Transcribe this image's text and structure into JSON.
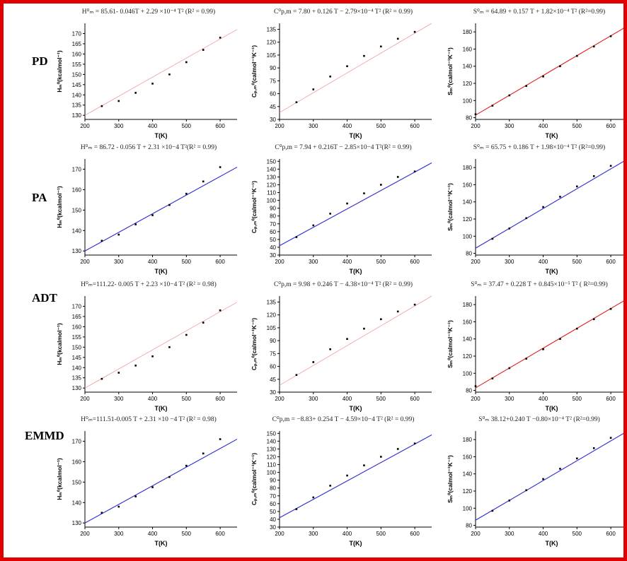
{
  "rows": [
    {
      "label": "PD"
    },
    {
      "label": "PA"
    },
    {
      "label": "ADT"
    },
    {
      "label": "EMMD"
    }
  ],
  "styles": {
    "red_line": "#f09a9a",
    "bright_red_line": "#e02020",
    "blue_line": "#2a2ad0",
    "point": "#000000",
    "frame_border": "#e00000"
  },
  "chart_data": [
    {
      "id": "PD-H",
      "row": 0,
      "col": 0,
      "type": "scatter",
      "equation": "H⁰ₘ = 85.61- 0.046T + 2.29 ×10⁻⁴ T² (R² = 0.99)",
      "xlabel": "T(K)",
      "ylabel": "Hₘ⁰(kcalmol⁻¹)",
      "xlim": [
        200,
        650
      ],
      "ylim": [
        128,
        175
      ],
      "xticks": [
        200,
        300,
        400,
        500,
        600
      ],
      "yticks": [
        130,
        135,
        140,
        145,
        150,
        155,
        160,
        165,
        170
      ],
      "x": [
        250,
        300,
        350,
        400,
        450,
        500,
        550,
        600
      ],
      "y": [
        134.5,
        137,
        141,
        145.5,
        150,
        156,
        162,
        168
      ],
      "fit": {
        "x0": 200,
        "y0": 130,
        "x1": 650,
        "y1": 172
      },
      "line_style": "red_line"
    },
    {
      "id": "PD-Cp",
      "row": 0,
      "col": 1,
      "type": "scatter",
      "equation": "C⁰p,m = 7.80 + 0.126 T − 2.79×10⁻⁴ T²    (R² = 0.99)",
      "xlabel": "T(K)",
      "ylabel": "Cₚ,ₘ⁰(calmol⁻¹K⁻¹)",
      "xlim": [
        200,
        650
      ],
      "ylim": [
        30,
        142
      ],
      "xticks": [
        200,
        300,
        400,
        500,
        600
      ],
      "yticks": [
        30,
        45,
        60,
        75,
        90,
        105,
        120,
        135
      ],
      "x": [
        250,
        300,
        350,
        400,
        450,
        500,
        550,
        600
      ],
      "y": [
        50,
        65,
        80,
        92,
        104,
        115,
        124,
        132
      ],
      "fit": {
        "x0": 200,
        "y0": 38,
        "x1": 650,
        "y1": 142
      },
      "line_style": "red_line"
    },
    {
      "id": "PD-S",
      "row": 0,
      "col": 2,
      "type": "scatter",
      "equation": "S⁰ₘ = 64.89 + 0.157 T + 1.82×10⁻⁴ T² (R²=0.99)",
      "xlabel": "T(K)",
      "ylabel": "Sₘ⁰(calmol⁻¹K⁻¹)",
      "xlim": [
        200,
        650
      ],
      "ylim": [
        78,
        190
      ],
      "xticks": [
        200,
        300,
        400,
        500,
        600
      ],
      "yticks": [
        80,
        100,
        120,
        140,
        160,
        180
      ],
      "x": [
        200,
        250,
        300,
        350,
        400,
        450,
        500,
        550,
        600
      ],
      "y": [
        84,
        94,
        106,
        117,
        128,
        140,
        152,
        163,
        175
      ],
      "fit": {
        "x0": 200,
        "y0": 83,
        "x1": 650,
        "y1": 187
      },
      "line_style": "bright_red_line"
    },
    {
      "id": "PA-H",
      "row": 1,
      "col": 0,
      "type": "scatter",
      "equation": "H⁰ₘ = 86.72 - 0.056 T + 2.31 ×10−4 T²(R² = 0.99)",
      "xlabel": "T(K)",
      "ylabel": "Hₘ⁰(kcalmol⁻¹)",
      "xlim": [
        200,
        650
      ],
      "ylim": [
        128,
        175
      ],
      "xticks": [
        200,
        300,
        400,
        500,
        600
      ],
      "yticks": [
        130,
        140,
        150,
        160,
        170
      ],
      "x": [
        250,
        300,
        350,
        400,
        450,
        500,
        550,
        600
      ],
      "y": [
        135,
        138,
        143,
        147.5,
        152.5,
        158,
        164,
        171
      ],
      "fit": {
        "x0": 200,
        "y0": 130,
        "x1": 650,
        "y1": 171
      },
      "line_style": "blue_line"
    },
    {
      "id": "PA-Cp",
      "row": 1,
      "col": 1,
      "type": "scatter",
      "equation": "C⁰p,m = 7.94 + 0.216T − 2.85×10−4 T²(R² = 0.99)",
      "xlabel": "T(K)",
      "ylabel": "Cₚ,ₘ⁰(calmol⁻¹K⁻¹)",
      "xlim": [
        200,
        650
      ],
      "ylim": [
        30,
        153
      ],
      "xticks": [
        200,
        300,
        400,
        500,
        600
      ],
      "yticks": [
        30,
        40,
        50,
        60,
        70,
        80,
        90,
        100,
        110,
        120,
        130,
        140,
        150
      ],
      "x": [
        250,
        300,
        350,
        400,
        450,
        500,
        550,
        600
      ],
      "y": [
        53,
        68,
        83,
        96,
        109,
        120,
        130,
        137
      ],
      "fit": {
        "x0": 200,
        "y0": 42,
        "x1": 650,
        "y1": 148
      },
      "line_style": "blue_line"
    },
    {
      "id": "PA-S",
      "row": 1,
      "col": 2,
      "type": "scatter",
      "equation": "S⁰ₘ = 65.75 + 0.186 T + 1.98×10⁻⁴ T²    (R²=0.99)",
      "xlabel": "T(K)",
      "ylabel": "Sₘ⁰(calmol⁻¹K⁻¹)",
      "xlim": [
        200,
        650
      ],
      "ylim": [
        78,
        190
      ],
      "xticks": [
        200,
        300,
        400,
        500,
        600
      ],
      "yticks": [
        80,
        100,
        120,
        140,
        160,
        180
      ],
      "x": [
        250,
        300,
        350,
        400,
        450,
        500,
        550,
        600
      ],
      "y": [
        97,
        109,
        121,
        134,
        146,
        158,
        170,
        182
      ],
      "fit": {
        "x0": 200,
        "y0": 86,
        "x1": 650,
        "y1": 190
      },
      "line_style": "blue_line"
    },
    {
      "id": "ADT-H",
      "row": 2,
      "col": 0,
      "type": "scatter",
      "equation": "H⁰ₘ=111.22- 0.005 T + 2.23 ×10−4 T² (R² = 0.98)",
      "xlabel": "T(K)",
      "ylabel": "Hₘ⁰(kcalmol⁻¹)",
      "xlim": [
        200,
        650
      ],
      "ylim": [
        128,
        175
      ],
      "xticks": [
        200,
        300,
        400,
        500,
        600
      ],
      "yticks": [
        130,
        135,
        140,
        145,
        150,
        155,
        160,
        165,
        170
      ],
      "x": [
        250,
        300,
        350,
        400,
        450,
        500,
        550,
        600
      ],
      "y": [
        134.5,
        137.5,
        141,
        145.5,
        150,
        156,
        162,
        168
      ],
      "fit": {
        "x0": 200,
        "y0": 130,
        "x1": 650,
        "y1": 172
      },
      "line_style": "red_line"
    },
    {
      "id": "ADT-Cp",
      "row": 2,
      "col": 1,
      "type": "scatter",
      "equation": "C⁰p,m = 9.98 + 0.246 T − 4.38×10⁻⁴ T² (R² = 0.99)",
      "xlabel": "T(K)",
      "ylabel": "Cₚ,ₘ⁰(calmol⁻¹K⁻¹)",
      "xlim": [
        200,
        650
      ],
      "ylim": [
        30,
        142
      ],
      "xticks": [
        200,
        300,
        400,
        500,
        600
      ],
      "yticks": [
        30,
        45,
        60,
        75,
        90,
        105,
        120,
        135
      ],
      "x": [
        250,
        300,
        350,
        400,
        450,
        500,
        550,
        600
      ],
      "y": [
        50,
        65,
        80,
        92,
        104,
        115,
        124,
        132
      ],
      "fit": {
        "x0": 200,
        "y0": 38,
        "x1": 650,
        "y1": 142
      },
      "line_style": "red_line"
    },
    {
      "id": "ADT-S",
      "row": 2,
      "col": 2,
      "type": "scatter",
      "equation": "S⁰ₘ = 37.47 + 0.228 T + 0.845×10⁻⁵ T²    ( R²=0.99)",
      "xlabel": "T(K)",
      "ylabel": "Sₘ⁰(calmol⁻¹K⁻¹)",
      "xlim": [
        200,
        650
      ],
      "ylim": [
        78,
        190
      ],
      "xticks": [
        200,
        300,
        400,
        500,
        600
      ],
      "yticks": [
        80,
        100,
        120,
        140,
        160,
        180
      ],
      "x": [
        200,
        250,
        300,
        350,
        400,
        450,
        500,
        550,
        600
      ],
      "y": [
        85,
        94,
        106,
        117,
        128,
        140,
        152,
        163,
        175
      ],
      "fit": {
        "x0": 200,
        "y0": 83,
        "x1": 650,
        "y1": 187
      },
      "line_style": "bright_red_line"
    },
    {
      "id": "EMMD-H",
      "row": 3,
      "col": 0,
      "type": "scatter",
      "equation": "H⁰ₘ=111.51-0.005 T + 2.31 ×10 −4 T² (R² = 0.98)",
      "xlabel": "T(K)",
      "ylabel": "Hₘ⁰(kcalmol⁻¹)",
      "xlim": [
        200,
        650
      ],
      "ylim": [
        128,
        175
      ],
      "xticks": [
        200,
        300,
        400,
        500,
        600
      ],
      "yticks": [
        130,
        140,
        150,
        160,
        170
      ],
      "x": [
        250,
        300,
        350,
        400,
        450,
        500,
        550,
        600
      ],
      "y": [
        135,
        138,
        143,
        147.5,
        152.5,
        158,
        164,
        171
      ],
      "fit": {
        "x0": 200,
        "y0": 130,
        "x1": 650,
        "y1": 171
      },
      "line_style": "blue_line"
    },
    {
      "id": "EMMD-Cp",
      "row": 3,
      "col": 1,
      "type": "scatter",
      "equation": "C⁰p,m = −8.83+ 0.254 T − 4.59×10−4 T² (R² = 0.99)",
      "xlabel": "T(K)",
      "ylabel": "Cₚ,ₘ⁰(calmol⁻¹K⁻¹)",
      "xlim": [
        200,
        650
      ],
      "ylim": [
        30,
        153
      ],
      "xticks": [
        200,
        300,
        400,
        500,
        600
      ],
      "yticks": [
        30,
        40,
        50,
        60,
        70,
        80,
        90,
        100,
        110,
        120,
        130,
        140,
        150
      ],
      "x": [
        250,
        300,
        350,
        400,
        450,
        500,
        550,
        600
      ],
      "y": [
        53,
        68,
        83,
        96,
        109,
        120,
        130,
        137
      ],
      "fit": {
        "x0": 200,
        "y0": 42,
        "x1": 650,
        "y1": 148
      },
      "line_style": "blue_line"
    },
    {
      "id": "EMMD-S",
      "row": 3,
      "col": 2,
      "type": "scatter",
      "equation": "S⁰ₘ 38.12+0.240 T −0.80×10⁻⁴ T²  (R²=0.99)",
      "xlabel": "T(K)",
      "ylabel": "Sₘ⁰(calmol⁻¹K⁻¹)",
      "xlim": [
        200,
        650
      ],
      "ylim": [
        78,
        190
      ],
      "xticks": [
        200,
        300,
        400,
        500,
        600
      ],
      "yticks": [
        80,
        100,
        120,
        140,
        160,
        180
      ],
      "x": [
        250,
        300,
        350,
        400,
        450,
        500,
        550,
        600
      ],
      "y": [
        97,
        109,
        121,
        134,
        146,
        158,
        170,
        182
      ],
      "fit": {
        "x0": 200,
        "y0": 86,
        "x1": 650,
        "y1": 190
      },
      "line_style": "blue_line"
    }
  ]
}
